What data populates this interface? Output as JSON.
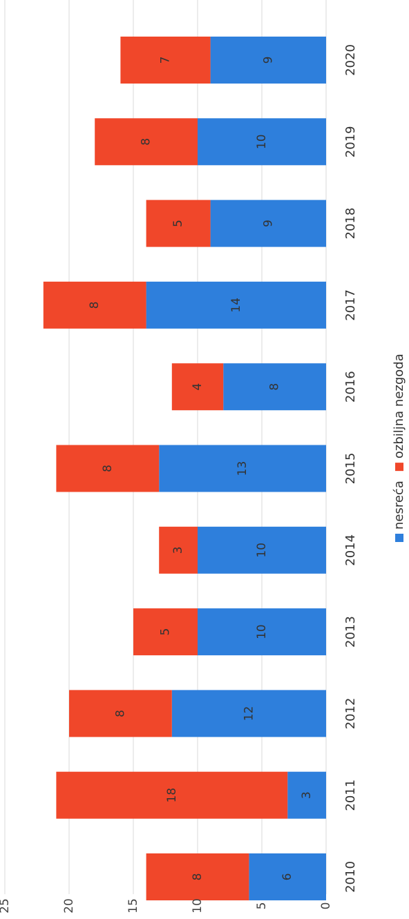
{
  "chart_data": {
    "type": "bar",
    "stacked": true,
    "orientation": "horizontal",
    "categories": [
      "2010",
      "2011",
      "2012",
      "2013",
      "2014",
      "2015",
      "2016",
      "2017",
      "2018",
      "2019",
      "2020"
    ],
    "series": [
      {
        "name": "nesreća",
        "color": "#2e7fdc",
        "values": [
          6,
          3,
          12,
          10,
          10,
          13,
          8,
          14,
          9,
          10,
          9
        ]
      },
      {
        "name": "ozbiljna nezgoda",
        "color": "#f0472a",
        "values": [
          8,
          18,
          8,
          5,
          3,
          8,
          4,
          8,
          5,
          8,
          7
        ]
      }
    ],
    "ylim": [
      0,
      25
    ],
    "yticks": [
      "0",
      "5",
      "10",
      "15",
      "20",
      "25"
    ],
    "grid": true,
    "legend_position": "bottom",
    "title": "",
    "xlabel": "",
    "ylabel": ""
  }
}
